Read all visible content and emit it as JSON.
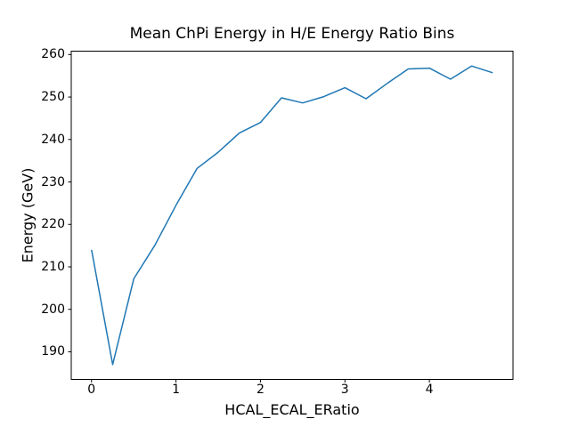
{
  "figure": {
    "background": "#ffffff"
  },
  "chart_data": {
    "type": "line",
    "title": "Mean ChPi Energy in H/E Energy Ratio Bins",
    "xlabel": "HCAL_ECAL_ERatio",
    "ylabel": "Energy (GeV)",
    "x": [
      0.0,
      0.25,
      0.5,
      0.75,
      1.0,
      1.25,
      1.5,
      1.75,
      2.0,
      2.25,
      2.5,
      2.75,
      3.0,
      3.25,
      3.5,
      3.75,
      4.0,
      4.25,
      4.5,
      4.75
    ],
    "y": [
      214.0,
      187.0,
      207.2,
      215.1,
      224.5,
      233.2,
      237.0,
      241.5,
      244.0,
      249.8,
      248.6,
      250.1,
      252.2,
      249.6,
      253.2,
      256.6,
      256.8,
      254.2,
      257.3,
      255.7
    ],
    "xlim": [
      -0.24,
      4.99
    ],
    "ylim": [
      183.5,
      260.8
    ],
    "xticks": [
      0,
      1,
      2,
      3,
      4
    ],
    "yticks": [
      190,
      200,
      210,
      220,
      230,
      240,
      250,
      260
    ],
    "line_color": "#1f77b4",
    "axes_color": "#000000",
    "grid": false,
    "legend_position": "none"
  }
}
